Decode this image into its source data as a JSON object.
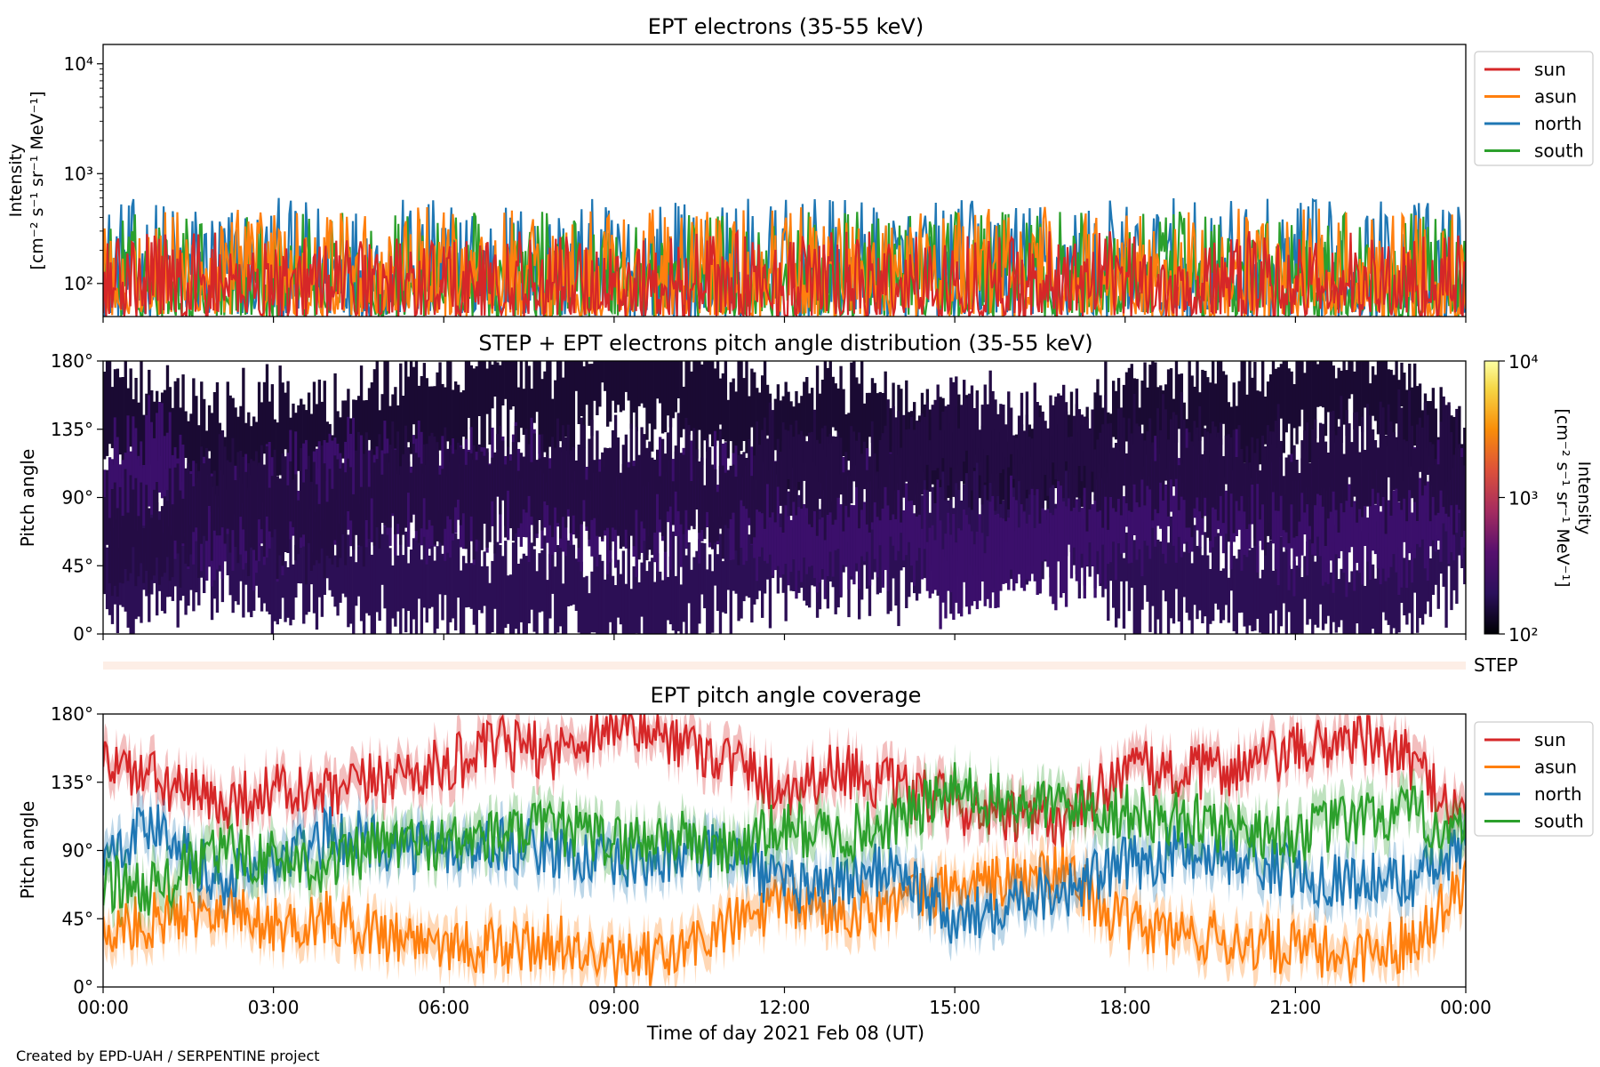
{
  "credit": "Created by EPD-UAH / SERPENTINE project",
  "colors": {
    "sun": "#d62728",
    "asun": "#ff7f0e",
    "north": "#1f77b4",
    "south": "#2ca02c",
    "step_band": "#fdeee6"
  },
  "chart_data": [
    {
      "type": "line",
      "title": "EPT electrons (35-55 keV)",
      "ylabel": "Intensity",
      "yunit": "[cm⁻² s⁻¹ sr⁻¹ MeV⁻¹]",
      "yscale": "log",
      "ylim": [
        50,
        15000
      ],
      "yticks": [
        {
          "value": 100,
          "label": "10²"
        },
        {
          "value": 1000,
          "label": "10³"
        },
        {
          "value": 10000,
          "label": "10⁴"
        }
      ],
      "xlim": [
        "2021-02-08 00:00",
        "2021-02-09 00:00"
      ],
      "grid": false,
      "legend": "upper right outside",
      "series": [
        {
          "name": "sun",
          "color": "#d62728",
          "typical": [
            50,
            300
          ]
        },
        {
          "name": "asun",
          "color": "#ff7f0e",
          "typical": [
            50,
            500
          ]
        },
        {
          "name": "north",
          "color": "#1f77b4",
          "typical": [
            50,
            600
          ]
        },
        {
          "name": "south",
          "color": "#2ca02c",
          "typical": [
            50,
            450
          ]
        }
      ]
    },
    {
      "type": "heatmap",
      "title": "STEP + EPT electrons pitch angle distribution (35-55 keV)",
      "ylabel": "Pitch angle",
      "ylim": [
        0,
        180
      ],
      "yticks": [
        "0°",
        "45°",
        "90°",
        "135°",
        "180°"
      ],
      "colorbar": {
        "label": "Intensity",
        "unit": "[cm⁻² s⁻¹ sr⁻¹ MeV⁻¹]",
        "scale": "log",
        "range": [
          100,
          10000
        ],
        "ticks": [
          {
            "value": 100,
            "label": "10²"
          },
          {
            "value": 1000,
            "label": "10³"
          },
          {
            "value": 10000,
            "label": "10⁴"
          }
        ]
      },
      "values_typical_range": [
        100,
        250
      ]
    },
    {
      "type": "band",
      "label": "STEP"
    },
    {
      "type": "line",
      "title": "EPT pitch angle coverage",
      "ylabel": "Pitch angle",
      "ylim": [
        0,
        180
      ],
      "yticks": [
        "0°",
        "45°",
        "90°",
        "135°",
        "180°"
      ],
      "xlabel": "Time of day 2021 Feb 08 (UT)",
      "xticks": [
        "00:00",
        "03:00",
        "06:00",
        "09:00",
        "12:00",
        "15:00",
        "18:00",
        "21:00",
        "00:00"
      ],
      "legend": "upper right outside",
      "series": [
        {
          "name": "sun",
          "color": "#d62728",
          "hours": [
            0,
            1,
            2,
            3,
            4,
            5,
            6,
            7,
            8,
            9,
            10,
            11,
            12,
            13,
            14,
            15,
            16,
            17,
            18,
            19,
            20,
            21,
            22,
            23,
            24
          ],
          "values": [
            150,
            135,
            120,
            130,
            125,
            140,
            145,
            160,
            155,
            175,
            165,
            150,
            130,
            145,
            130,
            120,
            110,
            110,
            145,
            140,
            145,
            155,
            165,
            150,
            110
          ]
        },
        {
          "name": "asun",
          "color": "#ff7f0e",
          "hours": [
            0,
            1,
            2,
            3,
            4,
            5,
            6,
            7,
            8,
            9,
            10,
            11,
            12,
            13,
            14,
            15,
            16,
            17,
            18,
            19,
            20,
            21,
            22,
            23,
            24
          ],
          "values": [
            35,
            45,
            55,
            40,
            45,
            35,
            30,
            25,
            30,
            15,
            20,
            40,
            55,
            50,
            55,
            65,
            70,
            75,
            40,
            35,
            30,
            25,
            20,
            30,
            70
          ]
        },
        {
          "name": "north",
          "color": "#1f77b4",
          "hours": [
            0,
            1,
            2,
            3,
            4,
            5,
            6,
            7,
            8,
            9,
            10,
            11,
            12,
            13,
            14,
            15,
            16,
            17,
            18,
            19,
            20,
            21,
            22,
            23,
            24
          ],
          "values": [
            90,
            110,
            70,
            80,
            100,
            95,
            90,
            95,
            90,
            80,
            85,
            90,
            65,
            70,
            80,
            40,
            60,
            65,
            80,
            90,
            85,
            75,
            70,
            70,
            90
          ]
        },
        {
          "name": "south",
          "color": "#2ca02c",
          "hours": [
            0,
            1,
            2,
            3,
            4,
            5,
            6,
            7,
            8,
            9,
            10,
            11,
            12,
            13,
            14,
            15,
            16,
            17,
            18,
            19,
            20,
            21,
            22,
            23,
            24
          ],
          "values": [
            70,
            65,
            90,
            85,
            80,
            95,
            95,
            100,
            105,
            95,
            100,
            90,
            105,
            100,
            110,
            130,
            120,
            120,
            115,
            110,
            105,
            100,
            110,
            115,
            100
          ]
        }
      ]
    }
  ]
}
